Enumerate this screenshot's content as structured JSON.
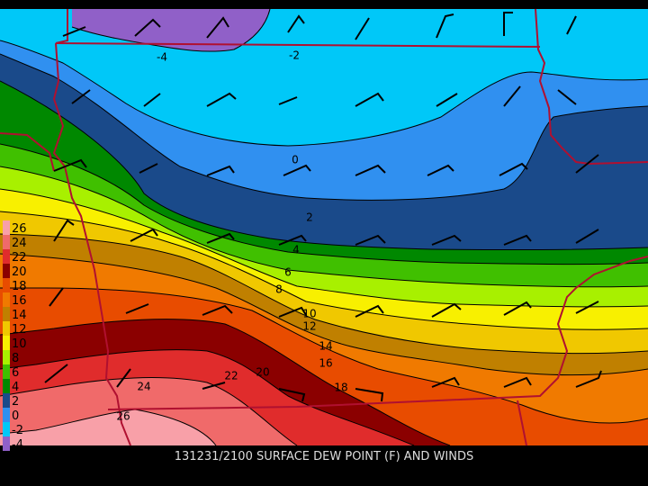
{
  "caption": "131231/2100 SURFACE DEW POINT (F) AND WINDS",
  "legend": [
    {
      "label": "26",
      "color": "#f8a0a8"
    },
    {
      "label": "24",
      "color": "#f06a6a"
    },
    {
      "label": "22",
      "color": "#e02c2c"
    },
    {
      "label": "20",
      "color": "#8b0000"
    },
    {
      "label": "18",
      "color": "#e84c00"
    },
    {
      "label": "16",
      "color": "#f07a00"
    },
    {
      "label": "14",
      "color": "#c08000"
    },
    {
      "label": "12",
      "color": "#f0c800"
    },
    {
      "label": "10",
      "color": "#f8f000"
    },
    {
      "label": "8",
      "color": "#a8f000"
    },
    {
      "label": "6",
      "color": "#40c000"
    },
    {
      "label": "4",
      "color": "#008800"
    },
    {
      "label": "2",
      "color": "#1a4a8a"
    },
    {
      "label": "0",
      "color": "#3090f0"
    },
    {
      "label": "-2",
      "color": "#00c8f8"
    },
    {
      "label": "-4",
      "color": "#9060c8"
    }
  ],
  "contour_labels": [
    "-4",
    "-2",
    "0",
    "2",
    "4",
    "6",
    "8",
    "10",
    "12",
    "14",
    "16",
    "18",
    "20",
    "22",
    "24",
    "26"
  ]
}
